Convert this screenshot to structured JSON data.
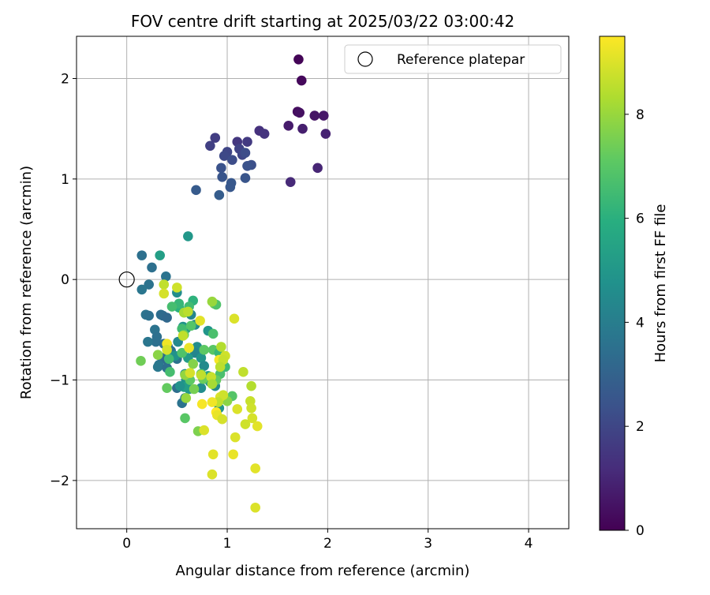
{
  "chart_data": {
    "type": "scatter",
    "title": "FOV centre drift starting at 2025/03/22 03:00:42",
    "xlabel": "Angular distance from reference (arcmin)",
    "ylabel": "Rotation from reference (arcmin)",
    "xlim": [
      -0.5,
      4.4
    ],
    "ylim": [
      -2.48,
      2.42
    ],
    "xticks": [
      0,
      1,
      2,
      3,
      4
    ],
    "xtick_labels": [
      "0",
      "1",
      "2",
      "3",
      "4"
    ],
    "yticks": [
      -2,
      -1,
      0,
      1,
      2
    ],
    "ytick_labels": [
      "−2",
      "−1",
      "0",
      "1",
      "2"
    ],
    "grid": true,
    "legend": {
      "position": "top-right",
      "entries": [
        "Reference platepar"
      ]
    },
    "reference_point": {
      "x": 0,
      "y": 0,
      "label": "Reference platepar"
    },
    "colorbar": {
      "label": "Hours from first FF file",
      "range": [
        0,
        9.5
      ],
      "ticks": [
        0,
        2,
        4,
        6,
        8
      ],
      "tick_labels": [
        "0",
        "2",
        "4",
        "6",
        "8"
      ],
      "colormap": "viridis"
    },
    "points": [
      [
        1.71,
        2.19,
        0.1
      ],
      [
        1.74,
        1.98,
        0.2
      ],
      [
        1.7,
        1.67,
        0.3
      ],
      [
        1.72,
        1.66,
        0.4
      ],
      [
        1.87,
        1.63,
        0.5
      ],
      [
        1.96,
        1.63,
        0.6
      ],
      [
        1.61,
        1.53,
        0.7
      ],
      [
        1.75,
        1.5,
        0.8
      ],
      [
        1.98,
        1.45,
        0.9
      ],
      [
        1.9,
        1.11,
        1.0
      ],
      [
        1.63,
        0.97,
        1.1
      ],
      [
        1.32,
        1.48,
        1.3
      ],
      [
        1.37,
        1.45,
        1.4
      ],
      [
        1.1,
        1.37,
        1.5
      ],
      [
        1.2,
        1.37,
        1.6
      ],
      [
        0.88,
        1.41,
        1.7
      ],
      [
        0.83,
        1.33,
        1.8
      ],
      [
        1.12,
        1.3,
        1.9
      ],
      [
        1.15,
        1.24,
        2.0
      ],
      [
        1.0,
        1.27,
        2.0
      ],
      [
        0.97,
        1.23,
        2.1
      ],
      [
        1.18,
        1.26,
        2.2
      ],
      [
        1.05,
        1.19,
        2.2
      ],
      [
        1.24,
        1.14,
        2.3
      ],
      [
        1.2,
        1.13,
        2.4
      ],
      [
        0.94,
        1.11,
        2.4
      ],
      [
        0.95,
        1.02,
        2.5
      ],
      [
        1.18,
        1.01,
        2.5
      ],
      [
        1.04,
        0.96,
        2.6
      ],
      [
        1.03,
        0.92,
        2.6
      ],
      [
        0.69,
        0.89,
        2.7
      ],
      [
        0.92,
        0.84,
        2.8
      ],
      [
        0.15,
        0.24,
        3.5
      ],
      [
        0.25,
        0.12,
        3.5
      ],
      [
        0.39,
        0.03,
        3.6
      ],
      [
        0.22,
        -0.05,
        3.6
      ],
      [
        0.15,
        -0.1,
        3.7
      ],
      [
        0.19,
        -0.35,
        3.6
      ],
      [
        0.22,
        -0.36,
        3.5
      ],
      [
        0.34,
        -0.35,
        3.4
      ],
      [
        0.36,
        -0.36,
        3.3
      ],
      [
        0.4,
        -0.38,
        3.2
      ],
      [
        0.28,
        -0.5,
        3.6
      ],
      [
        0.3,
        -0.57,
        3.5
      ],
      [
        0.29,
        -0.62,
        3.5
      ],
      [
        0.21,
        -0.62,
        3.7
      ],
      [
        0.37,
        -0.64,
        3.4
      ],
      [
        0.41,
        -0.67,
        3.3
      ],
      [
        0.44,
        -0.71,
        3.5
      ],
      [
        0.35,
        -0.78,
        3.4
      ],
      [
        0.4,
        -0.8,
        3.3
      ],
      [
        0.5,
        -0.79,
        3.6
      ],
      [
        0.32,
        -0.85,
        3.7
      ],
      [
        0.31,
        -0.87,
        3.8
      ],
      [
        0.4,
        -0.88,
        3.5
      ],
      [
        0.5,
        -1.08,
        3.4
      ],
      [
        0.55,
        -1.23,
        3.6
      ],
      [
        0.58,
        -1.18,
        4.0
      ],
      [
        0.33,
        0.24,
        5.3
      ],
      [
        0.61,
        0.43,
        5.0
      ],
      [
        0.5,
        -0.13,
        4.6
      ],
      [
        0.64,
        -0.35,
        4.3
      ],
      [
        0.68,
        -0.45,
        4.5
      ],
      [
        0.56,
        -0.47,
        4.8
      ],
      [
        0.59,
        -0.49,
        5.2
      ],
      [
        0.81,
        -0.51,
        4.9
      ],
      [
        0.51,
        -0.62,
        4.4
      ],
      [
        0.7,
        -0.67,
        4.6
      ],
      [
        0.68,
        -0.73,
        4.3
      ],
      [
        0.48,
        -0.76,
        4.8
      ],
      [
        0.61,
        -0.78,
        5.2
      ],
      [
        0.74,
        -0.78,
        4.9
      ],
      [
        0.77,
        -0.86,
        4.5
      ],
      [
        0.58,
        -0.94,
        4.6
      ],
      [
        0.59,
        -1.0,
        4.7
      ],
      [
        0.83,
        -1.02,
        4.4
      ],
      [
        0.88,
        -1.06,
        4.5
      ],
      [
        0.74,
        -1.08,
        4.6
      ],
      [
        0.62,
        -1.09,
        5.0
      ],
      [
        0.81,
        -0.96,
        5.4
      ],
      [
        0.79,
        -0.99,
        5.3
      ],
      [
        0.57,
        -1.07,
        5.3
      ],
      [
        0.92,
        -1.28,
        4.9
      ],
      [
        0.53,
        -1.06,
        4.8
      ],
      [
        0.66,
        -0.21,
        6.1
      ],
      [
        0.52,
        -0.28,
        6.0
      ],
      [
        0.52,
        -0.24,
        6.3
      ],
      [
        0.62,
        -0.27,
        6.5
      ],
      [
        0.45,
        -0.27,
        6.6
      ],
      [
        0.87,
        -0.24,
        7.4
      ],
      [
        0.89,
        -0.25,
        6.8
      ],
      [
        0.55,
        -0.49,
        6.5
      ],
      [
        0.64,
        -0.46,
        6.9
      ],
      [
        0.86,
        -0.54,
        6.7
      ],
      [
        0.57,
        -0.55,
        7.2
      ],
      [
        0.86,
        -0.7,
        7.0
      ],
      [
        0.77,
        -0.7,
        7.1
      ],
      [
        0.92,
        -0.73,
        6.3
      ],
      [
        0.55,
        -0.73,
        6.8
      ],
      [
        0.42,
        -0.79,
        6.5
      ],
      [
        0.43,
        -0.92,
        6.6
      ],
      [
        0.14,
        -0.81,
        7.4
      ],
      [
        0.4,
        -1.08,
        7.2
      ],
      [
        0.66,
        -0.84,
        7.7
      ],
      [
        0.74,
        -0.94,
        6.9
      ],
      [
        0.93,
        -0.94,
        6.7
      ],
      [
        0.98,
        -0.87,
        6.4
      ],
      [
        0.63,
        -1.0,
        7.1
      ],
      [
        0.76,
        -0.99,
        7.3
      ],
      [
        0.89,
        -1.0,
        7.2
      ],
      [
        0.97,
        -1.19,
        6.5
      ],
      [
        1.05,
        -1.16,
        6.9
      ],
      [
        0.67,
        -1.09,
        7.5
      ],
      [
        0.58,
        -1.38,
        7.0
      ],
      [
        0.71,
        -1.51,
        7.6
      ],
      [
        0.31,
        -0.75,
        7.8
      ],
      [
        0.58,
        -0.95,
        7.9
      ],
      [
        0.85,
        -0.22,
        8.0
      ],
      [
        1.0,
        -1.21,
        7.8
      ],
      [
        0.59,
        -1.18,
        8.0
      ],
      [
        0.37,
        -0.05,
        8.6
      ],
      [
        0.37,
        -0.14,
        8.9
      ],
      [
        0.5,
        -0.08,
        8.8
      ],
      [
        0.57,
        -0.33,
        8.2
      ],
      [
        0.61,
        -0.32,
        8.5
      ],
      [
        0.73,
        -0.41,
        9.1
      ],
      [
        1.07,
        -0.39,
        9.0
      ],
      [
        0.56,
        -0.56,
        8.6
      ],
      [
        0.62,
        -0.68,
        9.2
      ],
      [
        0.4,
        -0.64,
        9.3
      ],
      [
        0.4,
        -0.7,
        8.9
      ],
      [
        0.94,
        -0.67,
        8.4
      ],
      [
        0.98,
        -0.76,
        8.8
      ],
      [
        0.92,
        -0.8,
        9.4
      ],
      [
        0.96,
        -0.8,
        8.7
      ],
      [
        0.93,
        -0.87,
        8.5
      ],
      [
        0.74,
        -0.95,
        8.6
      ],
      [
        0.84,
        -0.97,
        8.7
      ],
      [
        0.63,
        -0.93,
        8.9
      ],
      [
        0.85,
        -1.04,
        8.2
      ],
      [
        0.93,
        -1.17,
        9.0
      ],
      [
        0.96,
        -1.15,
        8.8
      ],
      [
        0.91,
        -1.22,
        8.6
      ],
      [
        0.85,
        -1.22,
        9.3
      ],
      [
        0.89,
        -1.32,
        9.5
      ],
      [
        0.9,
        -1.35,
        9.2
      ],
      [
        0.95,
        -1.39,
        8.9
      ],
      [
        0.75,
        -1.24,
        9.4
      ],
      [
        0.77,
        -1.5,
        9.0
      ],
      [
        1.16,
        -0.92,
        8.6
      ],
      [
        1.24,
        -1.06,
        8.4
      ],
      [
        1.23,
        -1.21,
        8.7
      ],
      [
        1.24,
        -1.28,
        8.8
      ],
      [
        1.1,
        -1.29,
        9.0
      ],
      [
        1.25,
        -1.38,
        8.9
      ],
      [
        1.3,
        -1.46,
        9.1
      ],
      [
        1.18,
        -1.44,
        8.8
      ],
      [
        1.08,
        -1.57,
        9.0
      ],
      [
        1.06,
        -1.74,
        9.2
      ],
      [
        0.86,
        -1.74,
        9.1
      ],
      [
        0.85,
        -1.94,
        9.0
      ],
      [
        1.28,
        -1.88,
        9.1
      ],
      [
        1.28,
        -2.27,
        9.0
      ]
    ]
  }
}
